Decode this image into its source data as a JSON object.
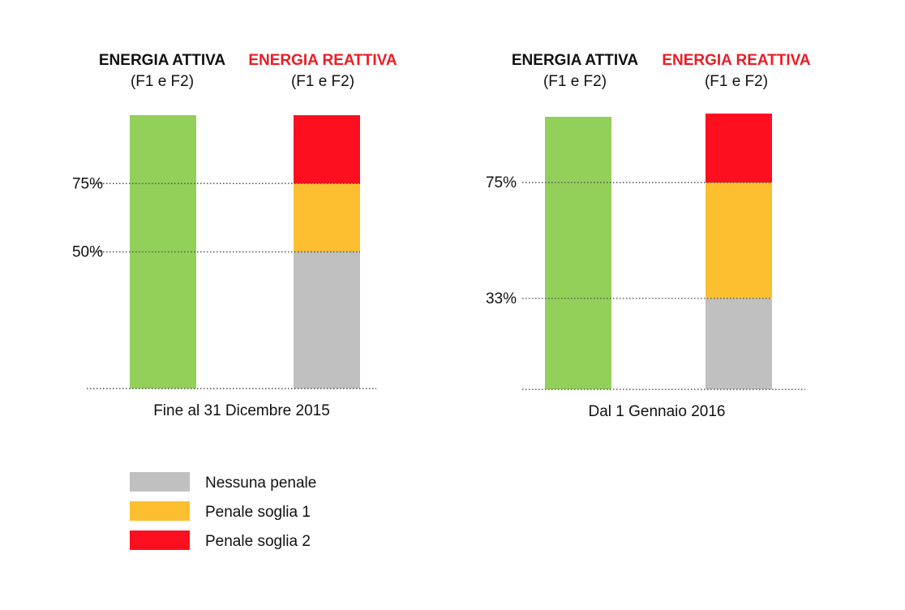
{
  "chart_data": [
    {
      "type": "bar",
      "stacked": true,
      "caption": "Fine al 31 Dicembre 2015",
      "ylim": [
        0,
        100
      ],
      "reference_lines": [
        75,
        50
      ],
      "bars": [
        {
          "title": "ENERGIA ATTIVA",
          "subtitle": "(F1 e F2)",
          "title_color": "#111111",
          "segments": [
            {
              "from": 0,
              "to": 100,
              "color": "#92d05a"
            }
          ]
        },
        {
          "title": "ENERGIA REATTIVA",
          "subtitle": "(F1 e F2)",
          "title_color": "#ec1c24",
          "segments": [
            {
              "from": 0,
              "to": 50,
              "label": "Nessuna penale",
              "color": "#c0c0c0"
            },
            {
              "from": 50,
              "to": 75,
              "label": "Penale soglia 1",
              "color": "#fdbf2f"
            },
            {
              "from": 75,
              "to": 100,
              "label": "Penale soglia 2",
              "color": "#fe0f1f"
            }
          ]
        }
      ]
    },
    {
      "type": "bar",
      "stacked": true,
      "caption": "Dal 1 Gennaio 2016",
      "ylim": [
        0,
        100
      ],
      "reference_lines": [
        75,
        33
      ],
      "bars": [
        {
          "title": "ENERGIA ATTIVA",
          "subtitle": "(F1 e F2)",
          "title_color": "#111111",
          "segments": [
            {
              "from": 0,
              "to": 100,
              "color": "#92d05a"
            }
          ]
        },
        {
          "title": "ENERGIA REATTIVA",
          "subtitle": "(F1 e F2)",
          "title_color": "#ec1c24",
          "segments": [
            {
              "from": 0,
              "to": 33,
              "label": "Nessuna penale",
              "color": "#c0c0c0"
            },
            {
              "from": 33,
              "to": 75,
              "label": "Penale soglia 1",
              "color": "#fdbf2f"
            },
            {
              "from": 75,
              "to": 100,
              "label": "Penale soglia 2",
              "color": "#fe0f1f"
            }
          ]
        }
      ]
    }
  ],
  "legend": [
    {
      "label": "Nessuna penale",
      "color": "#c0c0c0"
    },
    {
      "label": "Penale soglia 1",
      "color": "#fdbf2f"
    },
    {
      "label": "Penale soglia 2",
      "color": "#fe0f1f"
    }
  ]
}
